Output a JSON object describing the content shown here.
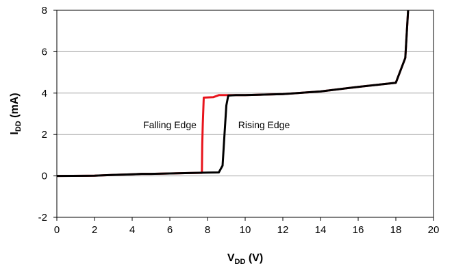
{
  "chart_data": {
    "type": "line",
    "xlim": [
      0,
      20
    ],
    "ylim": [
      -2,
      8
    ],
    "x_ticks": [
      "0",
      "2",
      "4",
      "6",
      "8",
      "10",
      "12",
      "14",
      "16",
      "18",
      "20"
    ],
    "y_ticks": [
      "-2",
      "0",
      "2",
      "4",
      "6",
      "8"
    ],
    "xlabel": {
      "main": "V",
      "sub": "DD",
      "unit": " (V)"
    },
    "ylabel": {
      "main": "I",
      "sub": "DD",
      "unit": " (mA)"
    },
    "grid": "horizontal",
    "annotations": [
      {
        "text": "Falling Edge",
        "x": 6.0,
        "y": 2.3
      },
      {
        "text": "Rising Edge",
        "x": 11.0,
        "y": 2.3
      }
    ],
    "series": [
      {
        "color": "#e8141c",
        "points": [
          [
            0,
            0.0
          ],
          [
            2,
            0.01
          ],
          [
            3,
            0.05
          ],
          [
            4,
            0.08
          ],
          [
            4.5,
            0.1
          ],
          [
            5,
            0.1
          ],
          [
            6,
            0.12
          ],
          [
            7,
            0.14
          ],
          [
            7.7,
            0.15
          ],
          [
            7.72,
            1.5
          ],
          [
            7.75,
            2.5
          ],
          [
            7.8,
            3.78
          ],
          [
            8.3,
            3.8
          ],
          [
            8.6,
            3.9
          ],
          [
            9,
            3.9
          ],
          [
            10,
            3.9
          ],
          [
            12,
            3.95
          ],
          [
            14,
            4.08
          ],
          [
            16,
            4.3
          ],
          [
            17,
            4.4
          ],
          [
            18,
            4.5
          ],
          [
            18.5,
            5.7
          ],
          [
            18.65,
            8.0
          ]
        ]
      },
      {
        "color": "#000000",
        "points": [
          [
            0,
            0.0
          ],
          [
            2,
            0.01
          ],
          [
            3,
            0.05
          ],
          [
            4,
            0.08
          ],
          [
            4.5,
            0.1
          ],
          [
            5,
            0.1
          ],
          [
            6,
            0.12
          ],
          [
            7,
            0.14
          ],
          [
            8,
            0.16
          ],
          [
            8.6,
            0.17
          ],
          [
            8.8,
            0.5
          ],
          [
            8.9,
            2.0
          ],
          [
            9.0,
            3.4
          ],
          [
            9.1,
            3.88
          ],
          [
            9.5,
            3.9
          ],
          [
            10,
            3.9
          ],
          [
            12,
            3.95
          ],
          [
            14,
            4.08
          ],
          [
            16,
            4.3
          ],
          [
            17,
            4.4
          ],
          [
            18,
            4.5
          ],
          [
            18.5,
            5.7
          ],
          [
            18.65,
            8.0
          ]
        ]
      }
    ]
  }
}
